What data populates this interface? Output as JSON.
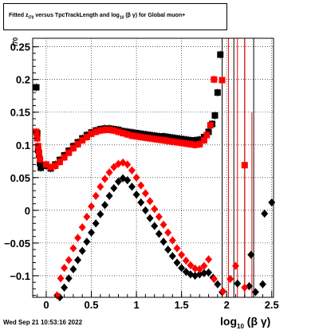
{
  "chart_data": {
    "type": "scatter",
    "title": "Fitted  z_I70 versus TpcTrackLength and log10(βγ) for Global muon+",
    "title_parts": {
      "pre": "Fitted  z",
      "sub1": "I70",
      "mid": " versus TpcTrackLength and log",
      "sub2": "10",
      "post": " (β  γ) for Global muon+"
    },
    "xlabel": "log10(βγ)",
    "xlabel_parts": {
      "pre": "log",
      "sub": "10",
      "post": " (β γ)"
    },
    "ylabel_fragment": "I70",
    "xlim": [
      -0.15,
      2.52
    ],
    "ylim": [
      -0.133,
      0.263
    ],
    "x_ticks": [
      0,
      0.5,
      1,
      1.5,
      2,
      2.5
    ],
    "x_tick_labels": [
      "0",
      "0.5",
      "1",
      "1.5",
      "2",
      "2.5"
    ],
    "y_ticks": [
      -0.1,
      -0.05,
      0,
      0.05,
      0.1,
      0.15,
      0.2,
      0.25
    ],
    "y_tick_labels": [
      "−0.1",
      "−0.05",
      "0",
      "0.05",
      "0.1",
      "0.15",
      "0.2",
      "0.25"
    ],
    "grid": true,
    "timestamp": "Wed Sep 21 10:53:16 2022",
    "colors": {
      "black_series": "#000000",
      "red_series": "#ff0000",
      "grid": "#000000"
    },
    "series": [
      {
        "marker": "square",
        "color": "#000000",
        "points": [
          [
            -0.11,
            0.188
          ],
          [
            -0.1,
            0.118
          ],
          [
            -0.09,
            0.092
          ],
          [
            -0.08,
            0.085
          ],
          [
            -0.07,
            0.072
          ],
          [
            -0.06,
            0.065
          ],
          [
            0.0,
            0.068
          ],
          [
            0.05,
            0.064
          ],
          [
            0.1,
            0.07
          ],
          [
            0.15,
            0.077
          ],
          [
            0.2,
            0.084
          ],
          [
            0.25,
            0.091
          ],
          [
            0.3,
            0.098
          ],
          [
            0.35,
            0.104
          ],
          [
            0.4,
            0.11
          ],
          [
            0.45,
            0.115
          ],
          [
            0.5,
            0.119
          ],
          [
            0.55,
            0.122
          ],
          [
            0.6,
            0.124
          ],
          [
            0.65,
            0.125
          ],
          [
            0.7,
            0.125
          ],
          [
            0.75,
            0.124
          ],
          [
            0.8,
            0.123
          ],
          [
            0.85,
            0.121
          ],
          [
            0.9,
            0.12
          ],
          [
            0.95,
            0.119
          ],
          [
            1.0,
            0.118
          ],
          [
            1.05,
            0.117
          ],
          [
            1.1,
            0.116
          ],
          [
            1.15,
            0.115
          ],
          [
            1.2,
            0.114
          ],
          [
            1.25,
            0.113
          ],
          [
            1.3,
            0.113
          ],
          [
            1.35,
            0.112
          ],
          [
            1.4,
            0.111
          ],
          [
            1.45,
            0.11
          ],
          [
            1.5,
            0.109
          ],
          [
            1.55,
            0.108
          ],
          [
            1.6,
            0.107
          ],
          [
            1.65,
            0.107
          ],
          [
            1.7,
            0.108
          ],
          [
            1.75,
            0.112
          ],
          [
            1.8,
            0.12
          ],
          [
            1.84,
            0.132
          ],
          [
            1.87,
            0.145
          ],
          [
            1.9,
            0.18
          ],
          [
            1.93,
            0.238
          ]
        ]
      },
      {
        "marker": "square",
        "color": "#ff0000",
        "points": [
          [
            -0.11,
            0.12
          ],
          [
            -0.1,
            0.11
          ],
          [
            -0.09,
            0.098
          ],
          [
            -0.08,
            0.088
          ],
          [
            -0.07,
            0.078
          ],
          [
            0.0,
            0.07
          ],
          [
            0.05,
            0.066
          ],
          [
            0.1,
            0.068
          ],
          [
            0.15,
            0.074
          ],
          [
            0.2,
            0.081
          ],
          [
            0.25,
            0.088
          ],
          [
            0.3,
            0.095
          ],
          [
            0.35,
            0.101
          ],
          [
            0.4,
            0.107
          ],
          [
            0.45,
            0.112
          ],
          [
            0.5,
            0.117
          ],
          [
            0.55,
            0.12
          ],
          [
            0.6,
            0.122
          ],
          [
            0.65,
            0.123
          ],
          [
            0.7,
            0.123
          ],
          [
            0.75,
            0.122
          ],
          [
            0.8,
            0.12
          ],
          [
            0.85,
            0.118
          ],
          [
            0.9,
            0.116
          ],
          [
            0.95,
            0.114
          ],
          [
            1.0,
            0.113
          ],
          [
            1.05,
            0.112
          ],
          [
            1.1,
            0.111
          ],
          [
            1.15,
            0.11
          ],
          [
            1.2,
            0.109
          ],
          [
            1.25,
            0.108
          ],
          [
            1.3,
            0.107
          ],
          [
            1.35,
            0.106
          ],
          [
            1.4,
            0.105
          ],
          [
            1.45,
            0.104
          ],
          [
            1.5,
            0.103
          ],
          [
            1.55,
            0.102
          ],
          [
            1.6,
            0.101
          ],
          [
            1.65,
            0.1
          ],
          [
            1.7,
            0.101
          ],
          [
            1.75,
            0.107
          ],
          [
            1.78,
            0.115
          ],
          [
            1.82,
            0.13
          ],
          [
            1.86,
            0.2
          ],
          [
            1.95,
            0.199
          ],
          [
            2.2,
            0.069
          ]
        ]
      },
      {
        "marker": "diamond",
        "color": "#000000",
        "points": [
          [
            0.15,
            -0.133
          ],
          [
            0.2,
            -0.118
          ],
          [
            0.25,
            -0.104
          ],
          [
            0.3,
            -0.09
          ],
          [
            0.35,
            -0.076
          ],
          [
            0.4,
            -0.062
          ],
          [
            0.45,
            -0.048
          ],
          [
            0.5,
            -0.034
          ],
          [
            0.55,
            -0.02
          ],
          [
            0.6,
            -0.006
          ],
          [
            0.65,
            0.008
          ],
          [
            0.7,
            0.022
          ],
          [
            0.75,
            0.034
          ],
          [
            0.8,
            0.044
          ],
          [
            0.85,
            0.049
          ],
          [
            0.9,
            0.046
          ],
          [
            0.95,
            0.036
          ],
          [
            1.0,
            0.024
          ],
          [
            1.05,
            0.012
          ],
          [
            1.1,
            0.0
          ],
          [
            1.15,
            -0.012
          ],
          [
            1.2,
            -0.024
          ],
          [
            1.25,
            -0.036
          ],
          [
            1.3,
            -0.048
          ],
          [
            1.35,
            -0.06
          ],
          [
            1.4,
            -0.07
          ],
          [
            1.45,
            -0.08
          ],
          [
            1.5,
            -0.088
          ],
          [
            1.55,
            -0.094
          ],
          [
            1.6,
            -0.098
          ],
          [
            1.65,
            -0.1
          ],
          [
            1.7,
            -0.098
          ],
          [
            1.75,
            -0.096
          ],
          [
            1.8,
            -0.095
          ],
          [
            1.85,
            -0.103
          ],
          [
            1.9,
            -0.113
          ],
          [
            1.95,
            -0.125
          ],
          [
            2.12,
            -0.112
          ],
          [
            2.25,
            -0.116
          ],
          [
            2.27,
            -0.068
          ],
          [
            2.32,
            -0.125
          ],
          [
            2.4,
            -0.113
          ],
          [
            2.42,
            -0.005
          ],
          [
            2.5,
            0.012
          ]
        ]
      },
      {
        "marker": "diamond",
        "color": "#ff0000",
        "points": [
          [
            0.12,
            -0.13
          ],
          [
            0.16,
            -0.104
          ],
          [
            0.2,
            -0.088
          ],
          [
            0.25,
            -0.076
          ],
          [
            0.3,
            -0.058
          ],
          [
            0.35,
            -0.042
          ],
          [
            0.4,
            -0.026
          ],
          [
            0.45,
            -0.01
          ],
          [
            0.5,
            0.006
          ],
          [
            0.55,
            0.022
          ],
          [
            0.6,
            0.036
          ],
          [
            0.65,
            0.048
          ],
          [
            0.7,
            0.058
          ],
          [
            0.75,
            0.066
          ],
          [
            0.8,
            0.071
          ],
          [
            0.85,
            0.073
          ],
          [
            0.9,
            0.07
          ],
          [
            0.95,
            0.061
          ],
          [
            1.0,
            0.05
          ],
          [
            1.05,
            0.038
          ],
          [
            1.1,
            0.026
          ],
          [
            1.15,
            0.014
          ],
          [
            1.2,
            0.002
          ],
          [
            1.25,
            -0.01
          ],
          [
            1.3,
            -0.022
          ],
          [
            1.35,
            -0.034
          ],
          [
            1.4,
            -0.046
          ],
          [
            1.45,
            -0.058
          ],
          [
            1.5,
            -0.068
          ],
          [
            1.55,
            -0.077
          ],
          [
            1.6,
            -0.084
          ],
          [
            1.65,
            -0.089
          ],
          [
            1.7,
            -0.09
          ],
          [
            1.75,
            -0.085
          ],
          [
            1.8,
            -0.075
          ],
          [
            1.86,
            -0.105
          ],
          [
            1.96,
            -0.124
          ],
          [
            2.04,
            -0.105
          ],
          [
            2.1,
            -0.085
          ],
          [
            2.2,
            -0.118
          ]
        ]
      }
    ],
    "error_bar_lines": [
      {
        "x": 1.95,
        "color": "#000000",
        "y": [
          -0.133,
          0.263
        ]
      },
      {
        "x": 2.08,
        "color": "#000000",
        "y": [
          -0.133,
          0.263
        ]
      },
      {
        "x": 2.2,
        "color": "#000000",
        "y": [
          -0.133,
          0.263
        ]
      },
      {
        "x": 2.3,
        "color": "#000000",
        "y": [
          -0.133,
          0.263
        ]
      },
      {
        "x": 2.02,
        "color": "#ff0000",
        "y": [
          -0.133,
          0.263
        ]
      },
      {
        "x": 2.12,
        "color": "#ff0000",
        "y": [
          -0.133,
          0.263
        ]
      },
      {
        "x": 2.2,
        "color": "#ff0000",
        "y": [
          -0.133,
          0.263
        ]
      },
      {
        "x": 2.28,
        "color": "#ff0000",
        "y": [
          -0.133,
          0.15
        ]
      }
    ]
  }
}
